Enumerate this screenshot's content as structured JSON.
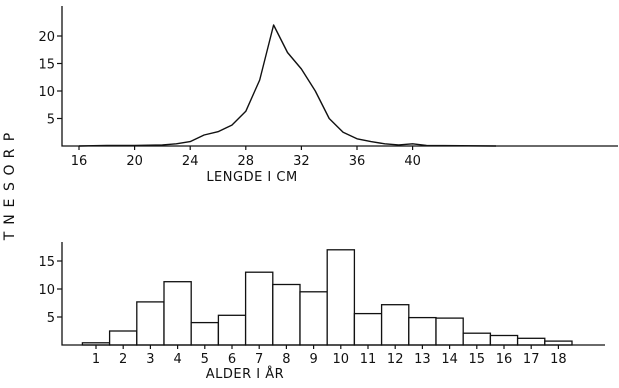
{
  "ylabel": "PROSENT",
  "chart_data": [
    {
      "type": "line",
      "xlabel": "LENGDE I CM",
      "x_ticks": [
        16,
        20,
        24,
        28,
        32,
        36,
        40
      ],
      "y_ticks": [
        5,
        10,
        15,
        20
      ],
      "xlim": [
        14,
        58
      ],
      "ylim": [
        0,
        24
      ],
      "grid": false,
      "series": [
        {
          "x": [
            16,
            17,
            18,
            19,
            20,
            21,
            22,
            23,
            24,
            25,
            26,
            27,
            28,
            29,
            30,
            31,
            32,
            33,
            34,
            35,
            36,
            37,
            38,
            39,
            40,
            41
          ],
          "y": [
            0,
            0.05,
            0.1,
            0.1,
            0.1,
            0.15,
            0.2,
            0.4,
            0.8,
            2.0,
            2.6,
            3.8,
            6.3,
            12.0,
            22.0,
            17.0,
            14.0,
            10.0,
            5.0,
            2.5,
            1.3,
            0.8,
            0.4,
            0.2,
            0.4,
            0.1
          ]
        }
      ]
    },
    {
      "type": "bar",
      "xlabel": "ALDER I ÅR",
      "categories": [
        "1",
        "2",
        "3",
        "4",
        "5",
        "6",
        "7",
        "8",
        "9",
        "10",
        "11",
        "12",
        "13",
        "14",
        "15",
        "16",
        "17",
        "18"
      ],
      "y_ticks": [
        5,
        10,
        15
      ],
      "ylim": [
        0,
        20
      ],
      "grid": false,
      "series": [
        {
          "values": [
            0.4,
            2.5,
            7.7,
            11.3,
            4.0,
            5.3,
            13.0,
            10.8,
            9.5,
            17.0,
            5.6,
            7.2,
            4.9,
            4.8,
            2.1,
            1.7,
            1.2,
            0.7
          ]
        }
      ]
    }
  ]
}
